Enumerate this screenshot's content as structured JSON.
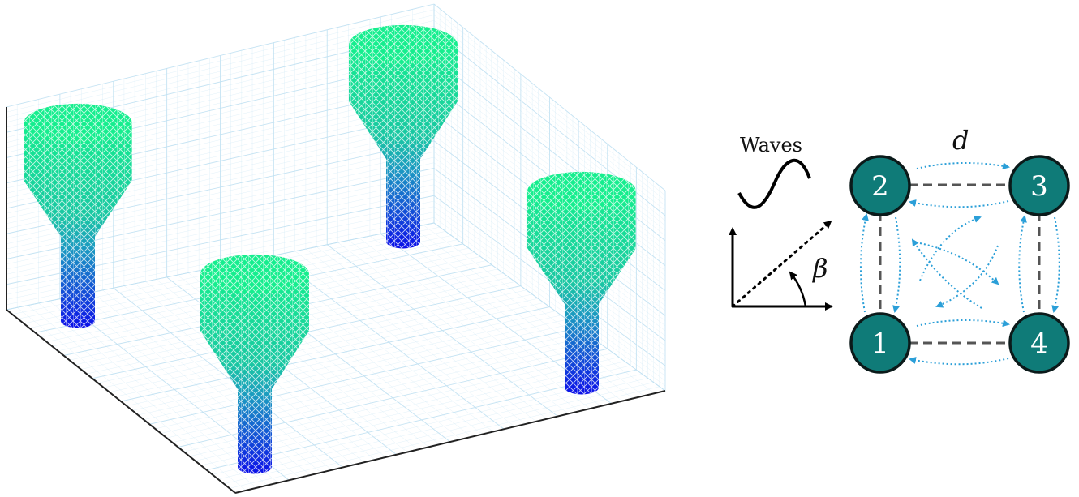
{
  "legend": {
    "waves_label": "Waves",
    "angle_label": "β",
    "spacing_label": "d"
  },
  "network": {
    "nodes": [
      {
        "id": "2",
        "label": "2"
      },
      {
        "id": "3",
        "label": "3"
      },
      {
        "id": "1",
        "label": "1"
      },
      {
        "id": "4",
        "label": "4"
      }
    ]
  },
  "colors": {
    "node_fill": "#0f7b78",
    "node_stroke": "#0b1a1a",
    "dashed_link": "#555555",
    "interaction_arrows": "#2b9fd8",
    "float_top": "#12e890",
    "float_mid": "#1fa7b3",
    "float_stem": "#0a12e6",
    "grid": "#cfe6f3",
    "axes": "#222222"
  }
}
